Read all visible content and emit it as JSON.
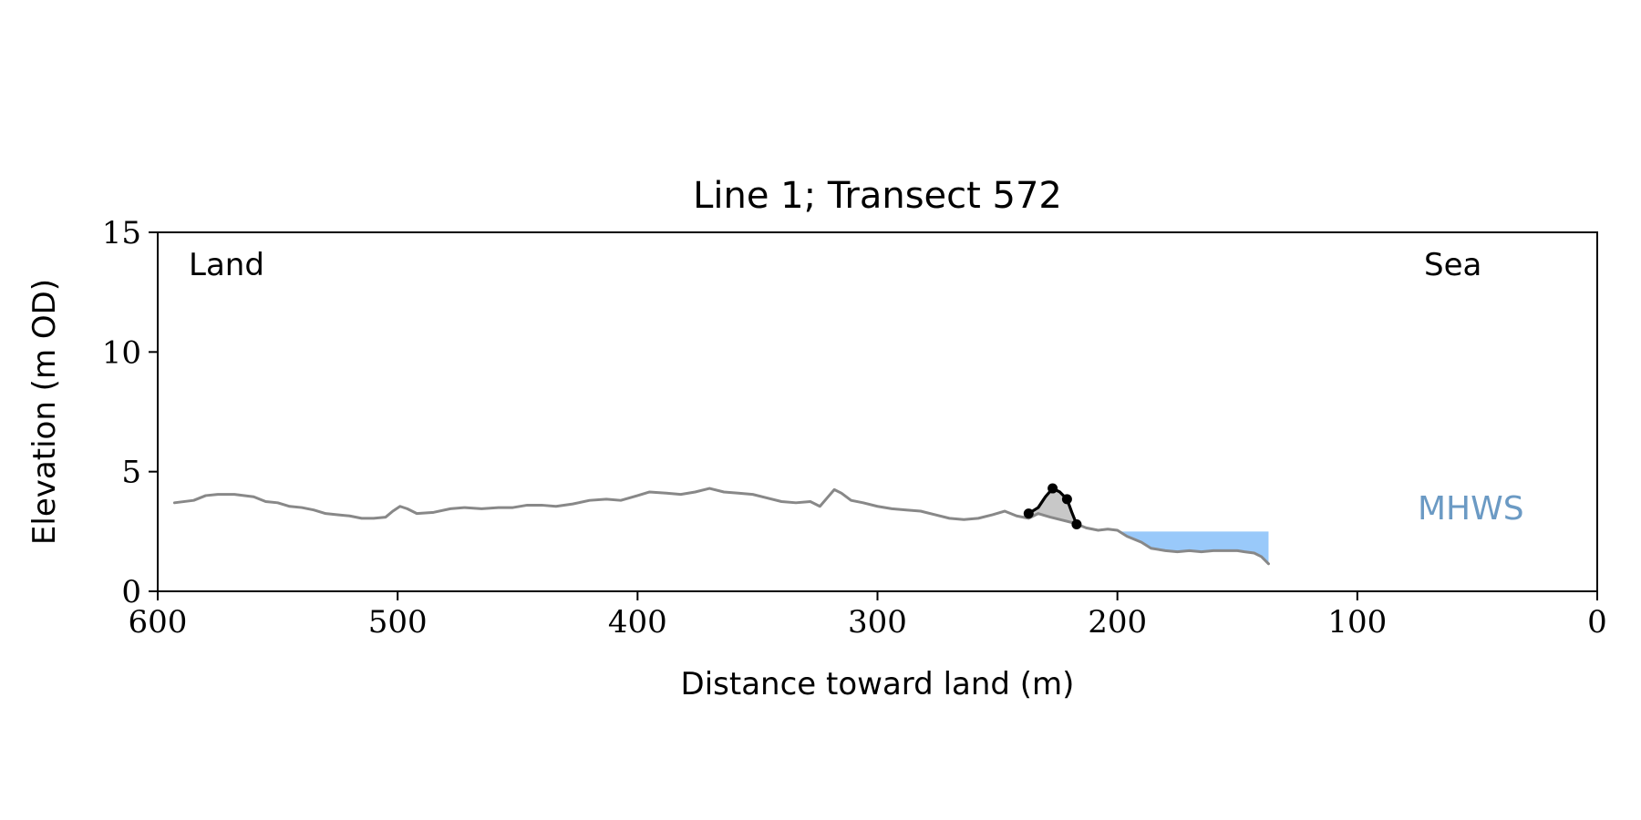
{
  "chart_data": {
    "type": "line",
    "title": "Line 1; Transect 572",
    "xlabel": "Distance toward land (m)",
    "ylabel": "Elevation (m OD)",
    "xlim": [
      600,
      0
    ],
    "ylim": [
      0,
      15
    ],
    "x_ticks": [
      600,
      500,
      400,
      300,
      200,
      100,
      0
    ],
    "y_ticks": [
      0,
      5,
      10,
      15
    ],
    "grid": false,
    "annotations": {
      "land": "Land",
      "sea": "Sea",
      "mhws": "MHWS"
    },
    "colors": {
      "profile": "#888888",
      "dune": "#000000",
      "dune_fill": "#c8c8c8",
      "water": "#99c9fa",
      "mhws_text": "#6b9ac4"
    },
    "mhws_level": 2.5,
    "water_x_range": [
      200,
      137
    ],
    "profile": [
      [
        593,
        3.7
      ],
      [
        585,
        3.8
      ],
      [
        580,
        4.0
      ],
      [
        575,
        4.05
      ],
      [
        568,
        4.05
      ],
      [
        560,
        3.95
      ],
      [
        555,
        3.75
      ],
      [
        550,
        3.7
      ],
      [
        545,
        3.55
      ],
      [
        540,
        3.5
      ],
      [
        535,
        3.4
      ],
      [
        530,
        3.25
      ],
      [
        525,
        3.2
      ],
      [
        520,
        3.15
      ],
      [
        515,
        3.05
      ],
      [
        510,
        3.05
      ],
      [
        505,
        3.1
      ],
      [
        502,
        3.35
      ],
      [
        499,
        3.55
      ],
      [
        496,
        3.45
      ],
      [
        492,
        3.25
      ],
      [
        485,
        3.3
      ],
      [
        478,
        3.45
      ],
      [
        472,
        3.5
      ],
      [
        465,
        3.45
      ],
      [
        458,
        3.5
      ],
      [
        452,
        3.5
      ],
      [
        446,
        3.6
      ],
      [
        440,
        3.6
      ],
      [
        434,
        3.55
      ],
      [
        427,
        3.65
      ],
      [
        420,
        3.8
      ],
      [
        413,
        3.85
      ],
      [
        407,
        3.8
      ],
      [
        400,
        4.0
      ],
      [
        395,
        4.15
      ],
      [
        388,
        4.1
      ],
      [
        382,
        4.05
      ],
      [
        376,
        4.15
      ],
      [
        370,
        4.3
      ],
      [
        364,
        4.15
      ],
      [
        358,
        4.1
      ],
      [
        352,
        4.05
      ],
      [
        346,
        3.9
      ],
      [
        340,
        3.75
      ],
      [
        334,
        3.7
      ],
      [
        328,
        3.75
      ],
      [
        324,
        3.55
      ],
      [
        321,
        3.9
      ],
      [
        318,
        4.25
      ],
      [
        315,
        4.1
      ],
      [
        311,
        3.8
      ],
      [
        306,
        3.7
      ],
      [
        300,
        3.55
      ],
      [
        294,
        3.45
      ],
      [
        288,
        3.4
      ],
      [
        282,
        3.35
      ],
      [
        276,
        3.2
      ],
      [
        270,
        3.05
      ],
      [
        264,
        3.0
      ],
      [
        258,
        3.05
      ],
      [
        252,
        3.2
      ],
      [
        247,
        3.35
      ],
      [
        242,
        3.15
      ],
      [
        237,
        3.05
      ],
      [
        233,
        3.25
      ],
      [
        228,
        3.1
      ],
      [
        224,
        3.0
      ],
      [
        218,
        2.85
      ],
      [
        213,
        2.65
      ],
      [
        208,
        2.55
      ],
      [
        204,
        2.6
      ],
      [
        200,
        2.55
      ],
      [
        196,
        2.3
      ],
      [
        190,
        2.05
      ],
      [
        186,
        1.8
      ],
      [
        180,
        1.7
      ],
      [
        175,
        1.65
      ],
      [
        170,
        1.7
      ],
      [
        165,
        1.65
      ],
      [
        160,
        1.7
      ],
      [
        155,
        1.7
      ],
      [
        150,
        1.7
      ],
      [
        147,
        1.65
      ],
      [
        143,
        1.6
      ],
      [
        140,
        1.45
      ],
      [
        137,
        1.15
      ]
    ],
    "dune_crest": [
      [
        237,
        3.25
      ],
      [
        233,
        3.5
      ],
      [
        230,
        3.95
      ],
      [
        227,
        4.3
      ],
      [
        224,
        4.15
      ],
      [
        221,
        3.85
      ],
      [
        219,
        3.3
      ],
      [
        217,
        2.8
      ]
    ],
    "dune_markers": [
      [
        237,
        3.25
      ],
      [
        227,
        4.3
      ],
      [
        221,
        3.85
      ],
      [
        217,
        2.8
      ]
    ]
  }
}
